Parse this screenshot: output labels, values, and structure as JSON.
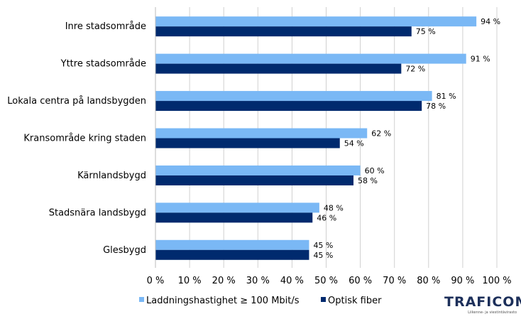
{
  "chart_data": {
    "type": "bar",
    "orientation": "horizontal",
    "categories": [
      "Inre stadsområde",
      "Yttre stadsområde",
      "Lokala centra på landsbygden",
      "Kransområde kring staden",
      "Kärnlandsbygd",
      "Stadsnära landsbygd",
      "Glesbygd"
    ],
    "series": [
      {
        "name": "Laddningshastighet ≥ 100 Mbit/s",
        "color": "#7ab8f5",
        "values": [
          94,
          91,
          81,
          62,
          60,
          48,
          45
        ]
      },
      {
        "name": "Optisk fiber",
        "color": "#002a6e",
        "values": [
          75,
          72,
          78,
          54,
          58,
          46,
          45
        ]
      }
    ],
    "xlim": [
      0,
      100
    ],
    "xticks": [
      0,
      10,
      20,
      30,
      40,
      50,
      60,
      70,
      80,
      90,
      100
    ],
    "tick_suffix": " %",
    "grid": "vertical",
    "legend_placement": "bottom-left"
  },
  "logo": {
    "name": "TRAFICOM",
    "subtitle": "Liikenne- ja viestintävirasto",
    "color": "#1c2f5a"
  }
}
